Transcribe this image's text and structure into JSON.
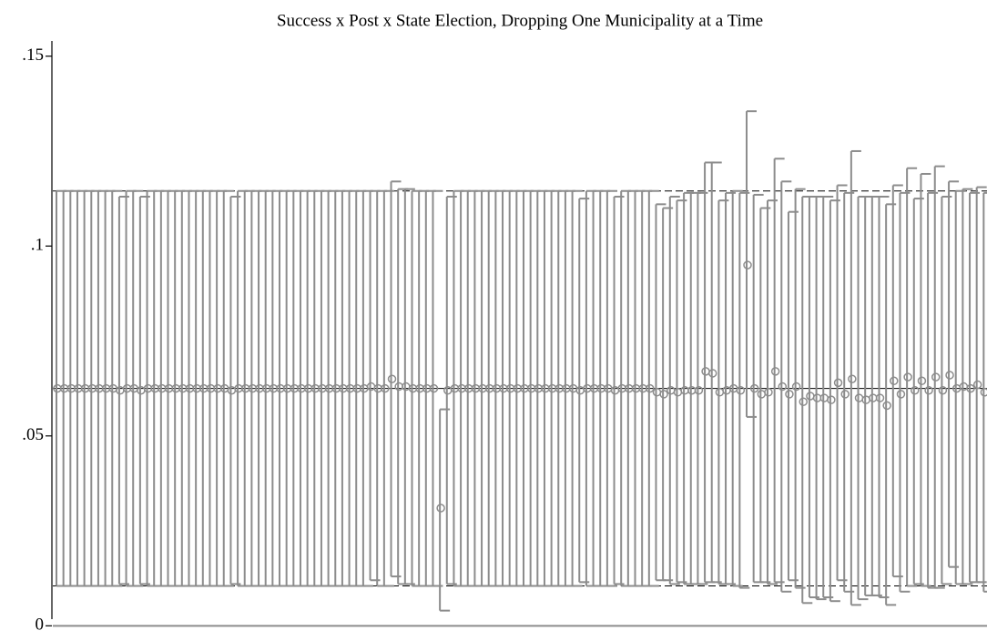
{
  "chart_data": {
    "type": "errorbar",
    "title": "Success x Post x State Election, Dropping One Municipality at a Time",
    "color": "#8c8c8c",
    "ylim": [
      -0.004,
      0.154
    ],
    "yticks": [
      {
        "value": 0,
        "label": "0"
      },
      {
        "value": 0.05,
        "label": ".05"
      },
      {
        "value": 0.1,
        "label": ".1"
      },
      {
        "value": 0.15,
        "label": ".15"
      }
    ],
    "reference_lines": [
      {
        "value": 0,
        "style": "solid",
        "color": "#8c8c8c"
      },
      {
        "value": 0.0625,
        "style": "solid",
        "color": "#000000"
      },
      {
        "value": 0.0105,
        "style": "dashed",
        "color": "#000000"
      },
      {
        "value": 0.1145,
        "style": "dashed",
        "color": "#000000"
      }
    ],
    "values": [
      0.0625,
      0.0625,
      0.0625,
      0.0625,
      0.0625,
      0.0625,
      0.0625,
      0.0625,
      0.0625,
      0.062,
      0.0625,
      0.0625,
      0.062,
      0.0625,
      0.0625,
      0.0625,
      0.0625,
      0.0625,
      0.0625,
      0.0625,
      0.0625,
      0.0625,
      0.0625,
      0.0625,
      0.0625,
      0.062,
      0.0625,
      0.0625,
      0.0625,
      0.0625,
      0.0625,
      0.0625,
      0.0625,
      0.0625,
      0.0625,
      0.0625,
      0.0625,
      0.0625,
      0.0625,
      0.0625,
      0.0625,
      0.0625,
      0.0625,
      0.0625,
      0.0625,
      0.063,
      0.0625,
      0.0625,
      0.065,
      0.063,
      0.063,
      0.0625,
      0.0625,
      0.0625,
      0.0625,
      0.031,
      0.062,
      0.0625,
      0.0625,
      0.0625,
      0.0625,
      0.0625,
      0.0625,
      0.0625,
      0.0625,
      0.0625,
      0.0625,
      0.0625,
      0.0625,
      0.0625,
      0.0625,
      0.0625,
      0.0625,
      0.0625,
      0.0625,
      0.062,
      0.0625,
      0.0625,
      0.0625,
      0.0625,
      0.062,
      0.0625,
      0.0625,
      0.0625,
      0.0625,
      0.0625,
      0.0615,
      0.061,
      0.062,
      0.0615,
      0.062,
      0.062,
      0.062,
      0.067,
      0.0665,
      0.0615,
      0.062,
      0.0625,
      0.062,
      0.095,
      0.0625,
      0.061,
      0.0615,
      0.067,
      0.063,
      0.061,
      0.063,
      0.059,
      0.0605,
      0.06,
      0.06,
      0.0595,
      0.064,
      0.061,
      0.065,
      0.06,
      0.0595,
      0.06,
      0.06,
      0.058,
      0.0645,
      0.061,
      0.0655,
      0.062,
      0.0645,
      0.062,
      0.0655,
      0.062,
      0.066,
      0.0625,
      0.063,
      0.0625,
      0.0635,
      0.0615
    ],
    "lower": [
      0.0105,
      0.0105,
      0.0105,
      0.0105,
      0.0105,
      0.0105,
      0.0105,
      0.0105,
      0.0105,
      0.011,
      0.0105,
      0.0105,
      0.011,
      0.0105,
      0.0105,
      0.0105,
      0.0105,
      0.0105,
      0.0105,
      0.0105,
      0.0105,
      0.0105,
      0.0105,
      0.0105,
      0.0105,
      0.011,
      0.0105,
      0.0105,
      0.0105,
      0.0105,
      0.0105,
      0.0105,
      0.0105,
      0.0105,
      0.0105,
      0.0105,
      0.0105,
      0.0105,
      0.0105,
      0.0105,
      0.0105,
      0.0105,
      0.0105,
      0.0105,
      0.0105,
      0.012,
      0.0105,
      0.0105,
      0.013,
      0.011,
      0.011,
      0.0105,
      0.0105,
      0.0105,
      0.0105,
      0.004,
      0.011,
      0.0105,
      0.0105,
      0.0105,
      0.0105,
      0.0105,
      0.0105,
      0.0105,
      0.0105,
      0.0105,
      0.0105,
      0.0105,
      0.0105,
      0.0105,
      0.0105,
      0.0105,
      0.0105,
      0.0105,
      0.0105,
      0.0115,
      0.0105,
      0.0105,
      0.0105,
      0.0105,
      0.011,
      0.0105,
      0.0105,
      0.0105,
      0.0105,
      0.0105,
      0.012,
      0.012,
      0.011,
      0.0115,
      0.011,
      0.011,
      0.011,
      0.0115,
      0.0115,
      0.011,
      0.011,
      0.0105,
      0.01,
      0.055,
      0.0115,
      0.0115,
      0.011,
      0.0115,
      0.009,
      0.012,
      0.01,
      0.006,
      0.0075,
      0.007,
      0.0075,
      0.0065,
      0.012,
      0.009,
      0.0055,
      0.007,
      0.008,
      0.008,
      0.0075,
      0.0055,
      0.013,
      0.009,
      0.0105,
      0.011,
      0.0105,
      0.01,
      0.01,
      0.011,
      0.0155,
      0.011,
      0.011,
      0.0115,
      0.0115,
      0.009
    ],
    "upper": [
      0.1145,
      0.1145,
      0.1145,
      0.1145,
      0.1145,
      0.1145,
      0.1145,
      0.1145,
      0.1145,
      0.113,
      0.1145,
      0.1145,
      0.113,
      0.1145,
      0.1145,
      0.1145,
      0.1145,
      0.1145,
      0.1145,
      0.1145,
      0.1145,
      0.1145,
      0.1145,
      0.1145,
      0.1145,
      0.113,
      0.1145,
      0.1145,
      0.1145,
      0.1145,
      0.1145,
      0.1145,
      0.1145,
      0.1145,
      0.1145,
      0.1145,
      0.1145,
      0.1145,
      0.1145,
      0.1145,
      0.1145,
      0.1145,
      0.1145,
      0.1145,
      0.1145,
      0.1145,
      0.1145,
      0.1145,
      0.117,
      0.115,
      0.115,
      0.1145,
      0.1145,
      0.1145,
      0.1145,
      0.057,
      0.113,
      0.1145,
      0.1145,
      0.1145,
      0.1145,
      0.1145,
      0.1145,
      0.1145,
      0.1145,
      0.1145,
      0.1145,
      0.1145,
      0.1145,
      0.1145,
      0.1145,
      0.1145,
      0.1145,
      0.1145,
      0.1145,
      0.1125,
      0.1145,
      0.1145,
      0.1145,
      0.1145,
      0.113,
      0.1145,
      0.1145,
      0.1145,
      0.1145,
      0.1145,
      0.111,
      0.11,
      0.113,
      0.112,
      0.114,
      0.114,
      0.114,
      0.122,
      0.122,
      0.112,
      0.114,
      0.1145,
      0.114,
      0.1355,
      0.1135,
      0.11,
      0.112,
      0.123,
      0.117,
      0.109,
      0.115,
      0.113,
      0.113,
      0.113,
      0.113,
      0.112,
      0.116,
      0.114,
      0.125,
      0.113,
      0.113,
      0.113,
      0.113,
      0.111,
      0.116,
      0.114,
      0.1205,
      0.1125,
      0.119,
      0.114,
      0.121,
      0.113,
      0.117,
      0.1145,
      0.115,
      0.114,
      0.1155,
      0.114
    ]
  }
}
